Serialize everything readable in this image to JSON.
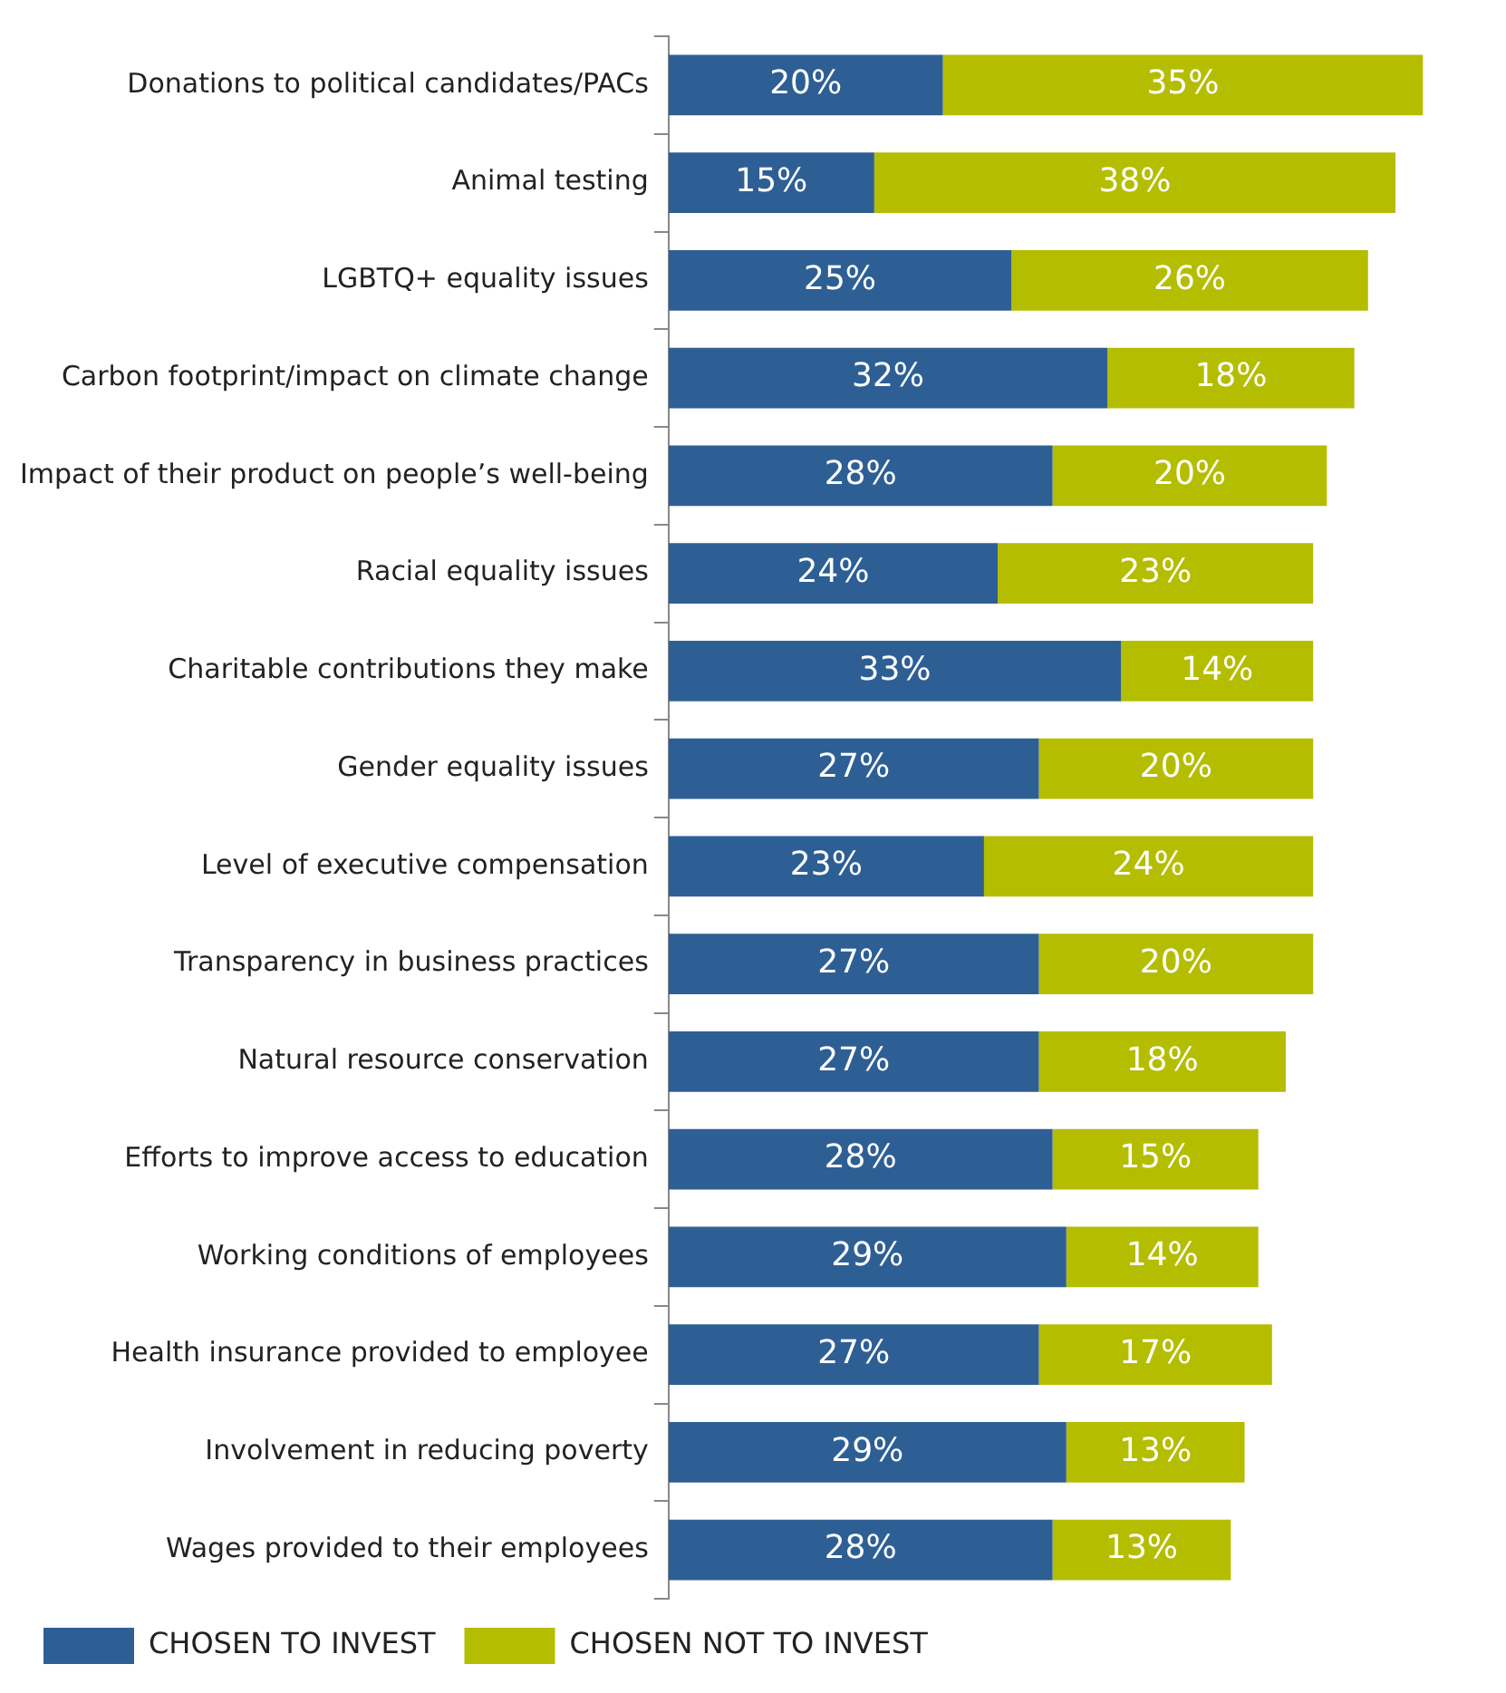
{
  "chart_data": {
    "type": "bar",
    "orientation": "horizontal",
    "stacked": true,
    "legend": "bottom",
    "grid": false,
    "categories": [
      "Donations to political candidates/PACs",
      "Animal testing",
      "LGBTQ+ equality issues",
      "Carbon footprint/impact on climate change",
      "Impact of their product on people’s well-being",
      "Racial equality issues",
      "Charitable contributions they make",
      "Gender equality issues",
      "Level of executive compensation",
      "Transparency in business practices",
      "Natural resource conservation",
      "Efforts to improve access to education",
      "Working conditions of employees",
      "Health insurance provided to employee",
      "Involvement in reducing poverty",
      "Wages provided to their employees"
    ],
    "series": [
      {
        "name": "CHOSEN TO INVEST",
        "color": "#2e5f94",
        "values": [
          20,
          15,
          25,
          32,
          28,
          24,
          33,
          27,
          23,
          27,
          27,
          28,
          29,
          27,
          29,
          28
        ],
        "value_labels": [
          "20%",
          "15%",
          "25%",
          "32%",
          "28%",
          "24%",
          "33%",
          "27%",
          "23%",
          "27%",
          "27%",
          "28%",
          "29%",
          "27%",
          "29%",
          "28%"
        ]
      },
      {
        "name": "CHOSEN NOT TO INVEST",
        "color": "#b5bd00",
        "values": [
          35,
          38,
          26,
          18,
          20,
          23,
          14,
          20,
          24,
          20,
          18,
          15,
          14,
          17,
          13,
          13
        ],
        "value_labels": [
          "35%",
          "38%",
          "26%",
          "18%",
          "20%",
          "23%",
          "14%",
          "20%",
          "24%",
          "20%",
          "18%",
          "15%",
          "14%",
          "17%",
          "13%",
          "13%"
        ]
      }
    ]
  }
}
